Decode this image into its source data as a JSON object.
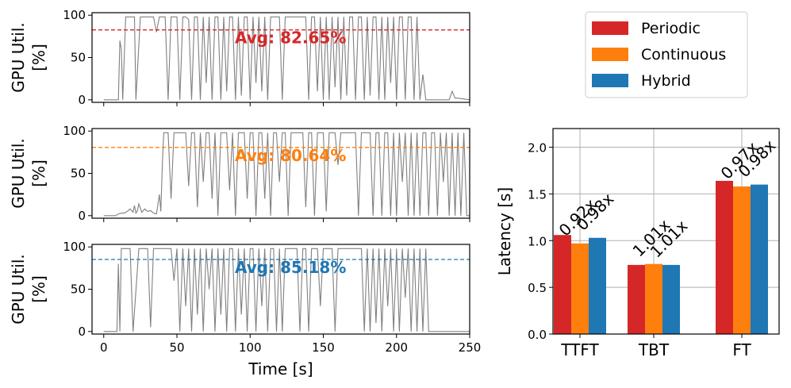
{
  "colors": {
    "periodic": "#d62728",
    "continuous": "#ff7f0e",
    "hybrid": "#1f77b4",
    "trace": "#808080",
    "grid": "#b0b0b0"
  },
  "chart_data": [
    {
      "type": "line",
      "ylabel_line1": "GPU Util.",
      "ylabel_line2": "[%]",
      "yticks": [
        0,
        50,
        100
      ],
      "xticks": [
        0,
        50,
        100,
        150,
        200,
        250
      ],
      "xlim": [
        -8,
        250
      ],
      "ylim": [
        -3,
        103
      ],
      "avg_value": 82.65,
      "avg_label": "Avg: 82.65%",
      "avg_color": "#d62728",
      "x": [
        0,
        10,
        11,
        12,
        13,
        14,
        15,
        16,
        20,
        21,
        22,
        25,
        26,
        27,
        29,
        30,
        33,
        34,
        36,
        38,
        39,
        40,
        41,
        42,
        44,
        46,
        48,
        50,
        52,
        54,
        56,
        58,
        60,
        62,
        64,
        66,
        68,
        70,
        72,
        74,
        76,
        78,
        80,
        82,
        84,
        86,
        88,
        90,
        92,
        94,
        96,
        98,
        100,
        102,
        104,
        106,
        108,
        110,
        112,
        114,
        116,
        118,
        120,
        122,
        124,
        126,
        128,
        130,
        132,
        134,
        136,
        138,
        140,
        142,
        144,
        146,
        148,
        150,
        152,
        154,
        156,
        158,
        160,
        162,
        164,
        166,
        168,
        170,
        172,
        174,
        176,
        178,
        180,
        182,
        184,
        186,
        188,
        190,
        192,
        194,
        196,
        198,
        200,
        202,
        204,
        206,
        208,
        210,
        212,
        214,
        216,
        218,
        220,
        224,
        230,
        236,
        238,
        240,
        242,
        250
      ],
      "y": [
        0,
        0,
        70,
        60,
        0,
        50,
        98,
        98,
        98,
        98,
        0,
        98,
        98,
        98,
        98,
        98,
        98,
        98,
        80,
        98,
        98,
        98,
        98,
        98,
        0,
        98,
        98,
        98,
        0,
        98,
        98,
        95,
        0,
        98,
        98,
        0,
        98,
        20,
        98,
        0,
        98,
        98,
        0,
        98,
        10,
        98,
        98,
        0,
        98,
        5,
        98,
        98,
        0,
        98,
        20,
        98,
        10,
        98,
        0,
        98,
        98,
        98,
        98,
        0,
        98,
        98,
        98,
        98,
        98,
        98,
        98,
        98,
        0,
        98,
        98,
        10,
        98,
        0,
        98,
        0,
        98,
        15,
        98,
        0,
        98,
        5,
        98,
        98,
        0,
        98,
        98,
        0,
        98,
        5,
        98,
        98,
        0,
        98,
        0,
        98,
        20,
        98,
        0,
        98,
        98,
        0,
        98,
        98,
        0,
        98,
        0,
        30,
        0,
        0,
        0,
        0,
        10,
        2,
        2,
        0
      ]
    },
    {
      "type": "line",
      "ylabel_line1": "GPU Util.",
      "ylabel_line2": "[%]",
      "yticks": [
        0,
        50,
        100
      ],
      "xticks": [
        0,
        50,
        100,
        150,
        200,
        250
      ],
      "xlim": [
        -8,
        250
      ],
      "ylim": [
        -3,
        103
      ],
      "avg_value": 80.64,
      "avg_label": "Avg: 80.64%",
      "avg_color": "#ff7f0e",
      "x": [
        0,
        8,
        10,
        12,
        14,
        16,
        18,
        20,
        21,
        22,
        23,
        24,
        26,
        28,
        30,
        32,
        34,
        36,
        38,
        39,
        40,
        41,
        42,
        44,
        46,
        48,
        50,
        52,
        54,
        56,
        58,
        60,
        62,
        64,
        66,
        68,
        70,
        72,
        74,
        76,
        78,
        80,
        82,
        84,
        86,
        88,
        90,
        92,
        94,
        96,
        98,
        100,
        102,
        104,
        106,
        108,
        110,
        112,
        114,
        116,
        118,
        120,
        122,
        124,
        126,
        128,
        130,
        132,
        134,
        136,
        138,
        140,
        142,
        144,
        146,
        148,
        150,
        152,
        154,
        156,
        158,
        160,
        162,
        164,
        166,
        168,
        170,
        172,
        174,
        176,
        178,
        180,
        182,
        184,
        186,
        188,
        190,
        192,
        194,
        196,
        198,
        200,
        202,
        204,
        206,
        208,
        210,
        212,
        214,
        216,
        218,
        220,
        222,
        224,
        226,
        228,
        230,
        232,
        234,
        236,
        238,
        240,
        242,
        244,
        246,
        248,
        250
      ],
      "y": [
        0,
        0,
        2,
        3,
        3,
        5,
        8,
        4,
        12,
        3,
        6,
        14,
        4,
        8,
        5,
        6,
        3,
        2,
        25,
        5,
        60,
        98,
        98,
        98,
        20,
        98,
        98,
        98,
        98,
        98,
        35,
        98,
        98,
        10,
        98,
        40,
        98,
        98,
        20,
        98,
        0,
        98,
        98,
        98,
        30,
        98,
        0,
        98,
        98,
        98,
        20,
        98,
        98,
        0,
        98,
        98,
        20,
        98,
        0,
        98,
        98,
        40,
        98,
        98,
        0,
        98,
        98,
        98,
        98,
        98,
        10,
        98,
        98,
        0,
        98,
        98,
        98,
        5,
        98,
        98,
        98,
        60,
        98,
        98,
        98,
        98,
        98,
        98,
        0,
        98,
        98,
        98,
        98,
        0,
        98,
        98,
        0,
        98,
        98,
        0,
        98,
        0,
        98,
        40,
        98,
        0,
        98,
        0,
        98,
        0,
        98,
        98,
        0,
        98,
        98,
        0,
        98,
        40,
        98,
        0,
        98,
        0,
        98,
        0,
        98,
        0,
        0
      ]
    },
    {
      "type": "line",
      "ylabel_line1": "GPU Util.",
      "ylabel_line2": "[%]",
      "yticks": [
        0,
        50,
        100
      ],
      "xticks": [
        0,
        50,
        100,
        150,
        200,
        250
      ],
      "xlim": [
        -8,
        250
      ],
      "ylim": [
        -3,
        103
      ],
      "avg_value": 85.18,
      "avg_label": "Avg: 85.18%",
      "avg_color": "#1f77b4",
      "xlabel": "Time [s]",
      "x": [
        0,
        8,
        9,
        10,
        11,
        12,
        13,
        14,
        16,
        18,
        20,
        24,
        26,
        28,
        30,
        32,
        34,
        36,
        38,
        40,
        42,
        44,
        46,
        48,
        50,
        52,
        54,
        56,
        58,
        60,
        62,
        64,
        66,
        68,
        70,
        72,
        74,
        76,
        78,
        80,
        82,
        84,
        86,
        88,
        90,
        92,
        94,
        96,
        98,
        100,
        102,
        104,
        106,
        108,
        110,
        112,
        114,
        116,
        118,
        120,
        122,
        124,
        126,
        128,
        130,
        132,
        134,
        136,
        138,
        140,
        142,
        144,
        146,
        148,
        150,
        152,
        154,
        156,
        158,
        160,
        162,
        164,
        166,
        168,
        170,
        172,
        174,
        176,
        178,
        180,
        182,
        184,
        186,
        188,
        190,
        192,
        194,
        196,
        198,
        200,
        202,
        204,
        206,
        208,
        210,
        212,
        214,
        216,
        218,
        220,
        222,
        224,
        226,
        228,
        230,
        232,
        234,
        236,
        238,
        240,
        242,
        244,
        246,
        248,
        250
      ],
      "y": [
        0,
        0,
        0,
        80,
        0,
        98,
        98,
        98,
        98,
        98,
        0,
        98,
        98,
        98,
        98,
        5,
        98,
        98,
        98,
        98,
        98,
        98,
        98,
        60,
        98,
        0,
        98,
        30,
        98,
        0,
        98,
        20,
        98,
        0,
        98,
        50,
        98,
        0,
        98,
        20,
        98,
        0,
        98,
        98,
        0,
        98,
        20,
        98,
        0,
        98,
        98,
        0,
        98,
        30,
        98,
        0,
        98,
        98,
        0,
        98,
        0,
        98,
        98,
        98,
        98,
        98,
        0,
        98,
        98,
        0,
        98,
        98,
        98,
        30,
        98,
        98,
        98,
        98,
        0,
        98,
        98,
        98,
        98,
        98,
        98,
        98,
        98,
        98,
        0,
        98,
        0,
        98,
        10,
        98,
        0,
        98,
        30,
        98,
        0,
        98,
        0,
        98,
        40,
        98,
        0,
        98,
        0,
        98,
        0,
        98,
        0,
        0,
        0,
        0,
        0,
        0,
        0,
        0,
        0,
        0,
        0,
        0,
        0,
        0,
        0
      ]
    },
    {
      "type": "bar",
      "categories": [
        "TTFT",
        "TBT",
        "FT"
      ],
      "series": [
        {
          "name": "Periodic",
          "values": [
            1.06,
            0.74,
            1.64
          ]
        },
        {
          "name": "Continuous",
          "values": [
            0.97,
            0.75,
            1.58
          ]
        },
        {
          "name": "Hybrid",
          "values": [
            1.03,
            0.74,
            1.6
          ]
        }
      ],
      "annotations": [
        {
          "category": "TTFT",
          "series": "Continuous",
          "text": "0.92x"
        },
        {
          "category": "TTFT",
          "series": "Hybrid",
          "text": "0.98x"
        },
        {
          "category": "TBT",
          "series": "Continuous",
          "text": "1.01x"
        },
        {
          "category": "TBT",
          "series": "Hybrid",
          "text": "1.01x"
        },
        {
          "category": "FT",
          "series": "Continuous",
          "text": "0.97x"
        },
        {
          "category": "FT",
          "series": "Hybrid",
          "text": "0.98x"
        }
      ],
      "ylabel": "Latency [s]",
      "ylim": [
        0,
        2.2
      ],
      "yticks": [
        0.0,
        0.5,
        1.0,
        1.5,
        2.0
      ],
      "ytick_labels": [
        "0.0",
        "0.5",
        "1.0",
        "1.5",
        "2.0"
      ],
      "grid": true,
      "legend_position": "top"
    }
  ]
}
